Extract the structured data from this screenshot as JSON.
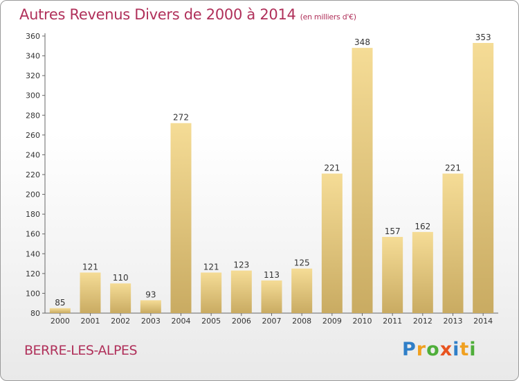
{
  "title": "Autres Revenus Divers de 2000 à 2014",
  "unit": "(en milliers d'€)",
  "commune": "BERRE-LES-ALPES",
  "logo": [
    "P",
    "r",
    "o",
    "x",
    "i",
    "t",
    "i"
  ],
  "colors": {
    "title": "#b0305a",
    "bar_light": "#f5dc96",
    "bar_dark": "#c9ab62"
  },
  "chart_data": {
    "type": "bar",
    "categories": [
      "2000",
      "2001",
      "2002",
      "2003",
      "2004",
      "2005",
      "2006",
      "2007",
      "2008",
      "2009",
      "2010",
      "2011",
      "2012",
      "2013",
      "2014"
    ],
    "values": [
      85,
      121,
      110,
      93,
      272,
      121,
      123,
      113,
      125,
      221,
      348,
      157,
      162,
      221,
      353
    ],
    "ylim": [
      80,
      360
    ],
    "yticks": [
      80,
      100,
      120,
      140,
      160,
      180,
      200,
      220,
      240,
      260,
      280,
      300,
      320,
      340,
      360
    ],
    "grid": false,
    "xlabel": "",
    "ylabel": ""
  }
}
